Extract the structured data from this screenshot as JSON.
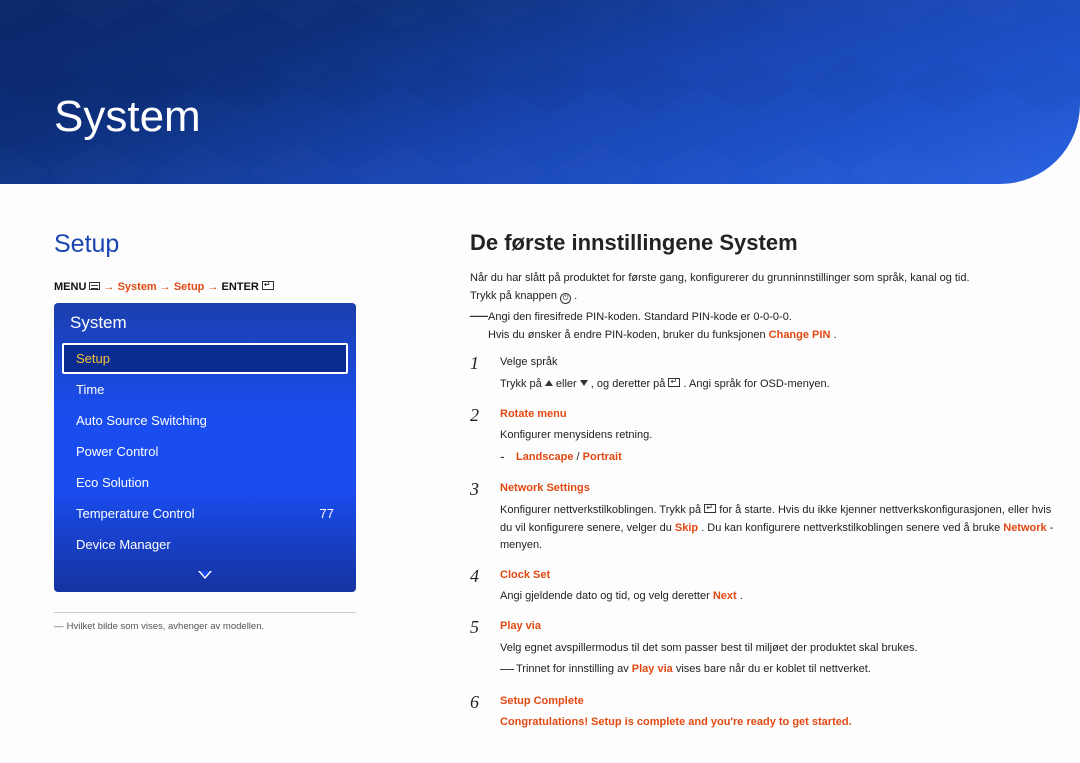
{
  "banner": {
    "title": "System"
  },
  "left": {
    "title": "Setup",
    "breadcrumb": {
      "menu": "MENU",
      "arrow": " → ",
      "sys": "System",
      "setup": "Setup",
      "enter": "ENTER"
    },
    "osd": {
      "header": "System",
      "items": [
        {
          "label": "Setup",
          "selected": true
        },
        {
          "label": "Time"
        },
        {
          "label": "Auto Source Switching"
        },
        {
          "label": "Power Control"
        },
        {
          "label": "Eco Solution"
        },
        {
          "label": "Temperature Control",
          "value": "77"
        },
        {
          "label": "Device Manager"
        }
      ]
    },
    "note_dash": "―",
    "note": "Hvilket bilde som vises, avhenger av modellen."
  },
  "right": {
    "title": "De første innstillingene System",
    "intro1": "Når du har slått på produktet for første gang, konfigurerer du grunninnstillinger som språk, kanal og tid.",
    "intro2_a": "Trykk på knappen ",
    "intro2_b": ".",
    "pin1": "Angi den firesifrede PIN-koden. Standard PIN-kode er 0-0-0-0.",
    "pin2_a": "Hvis du ønsker å endre PIN-koden, bruker du funksjonen ",
    "pin2_b": "Change PIN",
    "pin2_c": ".",
    "dash": "―",
    "steps": [
      {
        "n": "1",
        "lines": [
          {
            "plain": "Velge språk"
          },
          {
            "html": "press"
          }
        ]
      },
      {
        "n": "2",
        "lines": [
          {
            "red": "Rotate menu"
          },
          {
            "plain": "Konfigurer menysidens retning."
          },
          {
            "sub_lp": true
          }
        ]
      },
      {
        "n": "3",
        "lines": [
          {
            "red": "Network Settings"
          },
          {
            "net": true
          }
        ]
      },
      {
        "n": "4",
        "lines": [
          {
            "red": "Clock Set"
          },
          {
            "clock": true
          }
        ]
      },
      {
        "n": "5",
        "lines": [
          {
            "red": "Play via"
          },
          {
            "plain": "Velg egnet avspillermodus til det som passer best til miljøet der produktet skal brukes."
          },
          {
            "sub_play": true
          }
        ]
      },
      {
        "n": "6",
        "lines": [
          {
            "red": "Setup Complete"
          },
          {
            "full_red": "Congratulations! Setup is complete and you're ready to get started."
          }
        ]
      }
    ],
    "strings": {
      "press_a": "Trykk på ",
      "press_b": " eller ",
      "press_c": " , og deretter på ",
      "press_d": ". Angi språk for OSD-menyen.",
      "lp_dash": "-",
      "landscape": "Landscape",
      "slash": " / ",
      "portrait": "Portrait",
      "net_a": "Konfigurer nettverkstilkoblingen. Trykk på ",
      "net_b": " for å starte. Hvis du ikke kjenner nettverkskonfigurasjonen, eller hvis du vil konfigurere senere, velger du ",
      "skip": "Skip",
      "net_c": ". Du kan konfigurere nettverkstilkoblingen senere ved å bruke ",
      "network": "Network",
      "net_d": "-menyen.",
      "clock_a": "Angi gjeldende dato og tid, og velg deretter ",
      "next": "Next",
      "clock_b": ".",
      "play_a": "Trinnet for innstilling av ",
      "playvia": "Play via",
      "play_b": " vises bare når du er koblet til nettverket."
    }
  }
}
